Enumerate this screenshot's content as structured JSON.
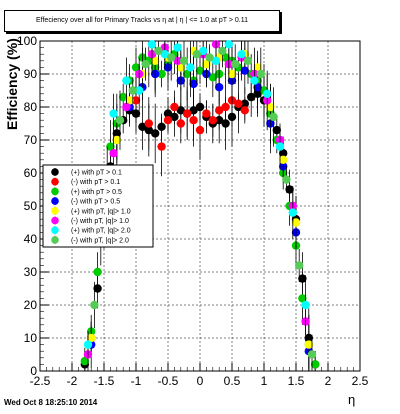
{
  "header": {
    "title": "Effeciency over all for Primary Tracks vs  η at | η | <= 1.0 at pT > 0.11",
    "date": "Wed Oct  8 18:25:10 2014"
  },
  "chart_data": {
    "type": "scatter",
    "title": "Effeciency over all for Primary Tracks vs  η at | η | <= 1.0 at pT > 0.11",
    "xlabel": "η",
    "ylabel": "Efficiency (%)",
    "xlim": [
      -2.5,
      2.5
    ],
    "ylim": [
      0,
      100
    ],
    "xticks": [
      "-2.5",
      "-2",
      "-1.5",
      "-1",
      "-0.5",
      "0",
      "0.5",
      "1",
      "1.5",
      "2",
      "2.5"
    ],
    "yticks": [
      "0",
      "10",
      "20",
      "30",
      "40",
      "50",
      "60",
      "70",
      "80",
      "90",
      "100"
    ],
    "grid": true,
    "legend_position": "center-left",
    "legend": [
      {
        "label": "(+) with pT > 0.1",
        "color": "#000000"
      },
      {
        "label": "(-) with pT > 0.1",
        "color": "#ff0000"
      },
      {
        "label": "(+) with pT > 0.5",
        "color": "#00cc00"
      },
      {
        "label": "(-) with pT > 0.5",
        "color": "#0000ff"
      },
      {
        "label": "(+) with pT, |q|> 1.0",
        "color": "#ffff00"
      },
      {
        "label": "(-) with pT, |q|> 1.0",
        "color": "#ff00ff"
      },
      {
        "label": "(+) with pT, |q|> 2.0",
        "color": "#00ffff"
      },
      {
        "label": "(-) with pT, |q|> 2.0",
        "color": "#55cc55"
      }
    ],
    "series": [
      {
        "color": "#000000",
        "x": [
          -1.8,
          -1.7,
          -1.6,
          -1.5,
          -1.4,
          -1.3,
          -1.2,
          -1.1,
          -1.0,
          -0.9,
          -0.8,
          -0.7,
          -0.6,
          -0.5,
          -0.4,
          -0.3,
          -0.2,
          -0.1,
          0.0,
          0.1,
          0.2,
          0.3,
          0.4,
          0.5,
          0.6,
          0.7,
          0.8,
          0.9,
          1.0,
          1.1,
          1.2,
          1.3,
          1.4,
          1.5,
          1.6,
          1.7,
          1.8
        ],
        "y": [
          2,
          10,
          25,
          45,
          62,
          72,
          76,
          79,
          78,
          74,
          73,
          72,
          74,
          78,
          77,
          79,
          78,
          79,
          80,
          77,
          75,
          76,
          75,
          77,
          80,
          81,
          83,
          84,
          82,
          78,
          73,
          66,
          55,
          46,
          28,
          10,
          2
        ]
      },
      {
        "color": "#ff0000",
        "x": [
          -1.0,
          -0.8,
          -0.6,
          -0.5,
          -0.4,
          -0.3,
          -0.2,
          -0.1,
          0.0,
          0.1,
          0.2,
          0.3,
          0.4,
          0.5,
          0.6,
          0.7
        ],
        "y": [
          82,
          75,
          68,
          76,
          80,
          75,
          78,
          76,
          73,
          78,
          76,
          79,
          80,
          82,
          81,
          79
        ]
      },
      {
        "color": "#00cc00",
        "x": [
          -1.8,
          -1.7,
          -1.6,
          -1.5,
          -1.4,
          -1.3,
          -1.2,
          -1.1,
          -1.0,
          -0.9,
          -0.8,
          -0.7,
          -0.6,
          -0.5,
          -0.4,
          -0.3,
          -0.2,
          -0.1,
          0.0,
          0.1,
          0.2,
          0.3,
          0.4,
          0.5,
          0.6,
          0.7,
          0.8,
          0.9,
          1.0,
          1.1,
          1.2,
          1.3,
          1.4,
          1.5,
          1.6,
          1.7,
          1.8
        ],
        "y": [
          3,
          12,
          30,
          55,
          68,
          75,
          83,
          88,
          92,
          95,
          94,
          92,
          90,
          93,
          96,
          92,
          90,
          88,
          91,
          93,
          89,
          90,
          95,
          94,
          92,
          96,
          90,
          88,
          85,
          78,
          70,
          60,
          50,
          38,
          22,
          8,
          2
        ]
      },
      {
        "color": "#0000ff",
        "x": [
          -1.7,
          -1.5,
          -1.3,
          -1.1,
          -0.9,
          -0.7,
          -0.5,
          -0.3,
          -0.1,
          0.1,
          0.3,
          0.5,
          0.7,
          0.9,
          1.1,
          1.3,
          1.5,
          1.7
        ],
        "y": [
          8,
          45,
          70,
          80,
          86,
          90,
          92,
          88,
          87,
          90,
          86,
          88,
          91,
          86,
          75,
          62,
          42,
          6
        ]
      },
      {
        "color": "#ffff00",
        "x": [
          -1.7,
          -1.5,
          -1.3,
          -1.1,
          -0.9,
          -0.7,
          -0.5,
          -0.3,
          -0.1,
          0.1,
          0.3,
          0.5,
          0.7,
          0.9,
          1.1,
          1.3,
          1.5,
          1.7
        ],
        "y": [
          10,
          50,
          70,
          82,
          90,
          94,
          95,
          92,
          97,
          93,
          95,
          90,
          96,
          92,
          80,
          64,
          45,
          8
        ]
      },
      {
        "color": "#ff00ff",
        "x": [
          -1.75,
          -1.55,
          -1.35,
          -1.15,
          -0.95,
          -0.75,
          -0.55,
          -0.35,
          -0.15,
          0.05,
          0.25,
          0.45,
          0.65,
          0.85,
          1.05,
          1.25,
          1.45,
          1.65
        ],
        "y": [
          5,
          40,
          66,
          80,
          90,
          96,
          98,
          94,
          92,
          96,
          99,
          93,
          95,
          90,
          82,
          70,
          50,
          15
        ]
      },
      {
        "color": "#00ffff",
        "x": [
          -1.75,
          -1.55,
          -1.35,
          -1.15,
          -0.95,
          -0.75,
          -0.55,
          -0.35,
          -0.15,
          0.05,
          0.25,
          0.45,
          0.65,
          0.85,
          1.05,
          1.25,
          1.45,
          1.65
        ],
        "y": [
          8,
          48,
          78,
          88,
          85,
          99,
          96,
          98,
          92,
          97,
          94,
          99,
          96,
          88,
          84,
          68,
          48,
          20
        ]
      },
      {
        "color": "#55cc55",
        "x": [
          -1.65,
          -1.45,
          -1.25,
          -1.05,
          -0.85,
          -0.65,
          -0.45,
          -0.25,
          -0.05,
          0.15,
          0.35,
          0.55,
          0.75,
          0.95,
          1.15,
          1.35,
          1.55,
          1.75
        ],
        "y": [
          20,
          60,
          76,
          85,
          93,
          97,
          95,
          94,
          96,
          95,
          97,
          93,
          94,
          90,
          77,
          58,
          32,
          5
        ]
      }
    ]
  }
}
